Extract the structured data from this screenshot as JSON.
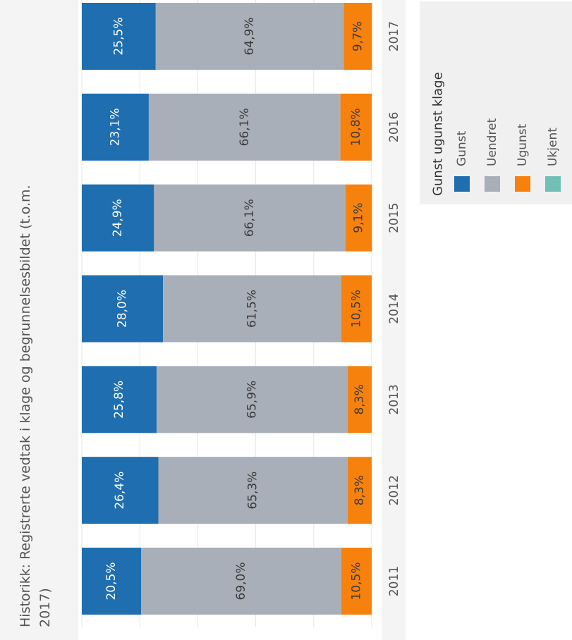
{
  "chart_data": {
    "type": "bar",
    "orientation": "stacked-100-percent",
    "title_lines": [
      "Historikk: Registrerte vedtak i klage og begrunnelsesbildet (t.o.m.",
      "2017)"
    ],
    "categories": [
      "2011",
      "2012",
      "2013",
      "2014",
      "2015",
      "2016",
      "2017"
    ],
    "series": [
      {
        "name": "Gunst",
        "color": "#1f6eb0",
        "text_color": "#ffffff",
        "values": [
          20.5,
          26.4,
          25.8,
          28.0,
          24.9,
          23.1,
          25.5
        ],
        "labels": [
          "20,5%",
          "26,4%",
          "25,8%",
          "28,0%",
          "24,9%",
          "23,1%",
          "25,5%"
        ]
      },
      {
        "name": "Uendret",
        "color": "#a9afb9",
        "text_color": "#3a3a3a",
        "values": [
          69.0,
          65.3,
          65.9,
          61.5,
          66.1,
          66.1,
          64.9
        ],
        "labels": [
          "69,0%",
          "65,3%",
          "65,9%",
          "61,5%",
          "66,1%",
          "66,1%",
          "64,9%"
        ]
      },
      {
        "name": "Ugunst",
        "color": "#f6820d",
        "text_color": "#3a3a3a",
        "values": [
          10.5,
          8.3,
          8.3,
          10.5,
          9.1,
          10.8,
          9.7
        ],
        "labels": [
          "10,5%",
          "8,3%",
          "8,3%",
          "10,5%",
          "9,1%",
          "10,8%",
          "9,7%"
        ]
      },
      {
        "name": "Ukjent",
        "color": "#72bfb6",
        "text_color": "#3a3a3a",
        "values": [
          0,
          0,
          0,
          0,
          0,
          0,
          0
        ],
        "labels": [
          "",
          "",
          "",
          "",
          "",
          "",
          ""
        ]
      }
    ],
    "ylim": [
      0,
      100
    ],
    "grid": true,
    "legend": {
      "title": "Gunst ugunst klage",
      "placement": "right",
      "items": [
        "Gunst",
        "Uendret",
        "Ugunst",
        "Ukjent"
      ]
    }
  }
}
